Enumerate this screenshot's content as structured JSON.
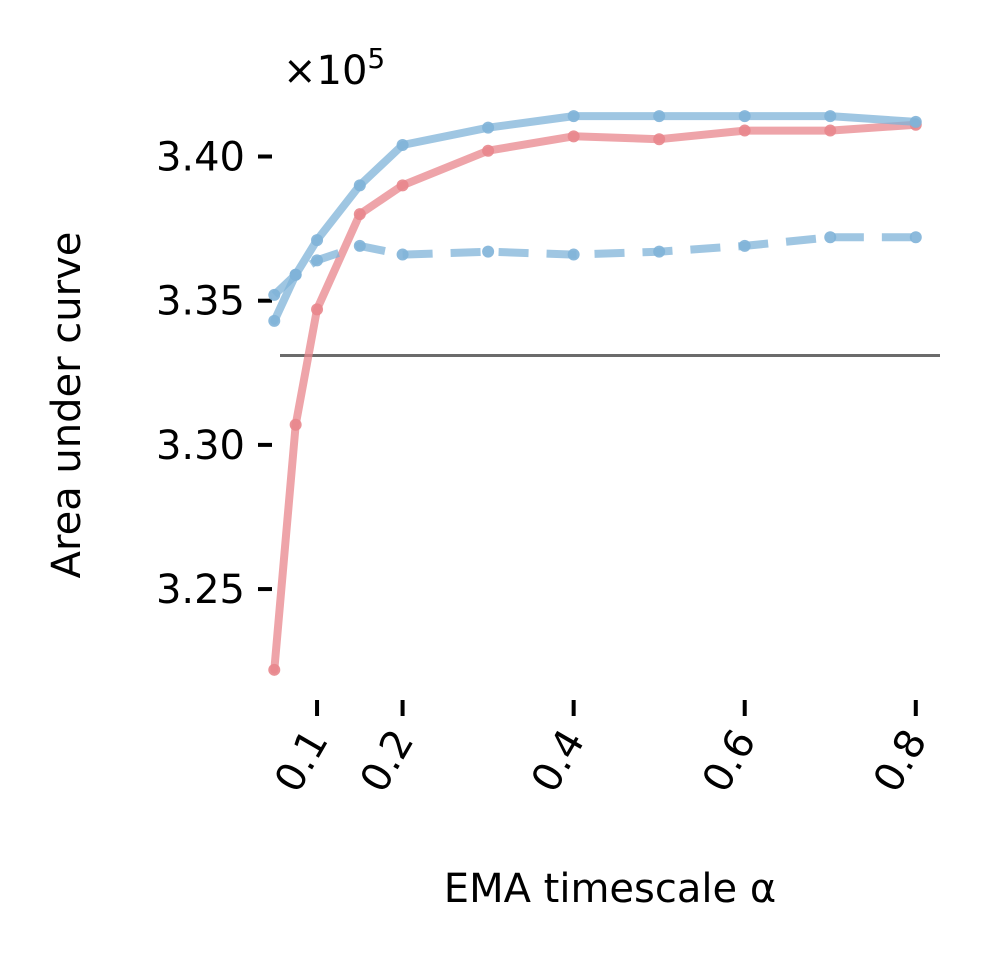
{
  "chart_data": {
    "type": "line",
    "xlabel": "EMA timescale α",
    "ylabel": "Area under curve",
    "y_offset_label": "×10",
    "y_offset_exponent": "5",
    "y_multiplier": 100000,
    "xlim": [
      0.045,
      0.84
    ],
    "ylim": [
      3.215,
      3.43
    ],
    "x_ticks": [
      0.1,
      0.2,
      0.4,
      0.6,
      0.8
    ],
    "x_tick_labels": [
      "0.1",
      "0.2",
      "0.4",
      "0.6",
      "0.8"
    ],
    "y_ticks": [
      3.25,
      3.3,
      3.35,
      3.4
    ],
    "y_tick_labels": [
      "3.25",
      "3.30",
      "3.35",
      "3.40"
    ],
    "grid": false,
    "reference_line": {
      "y": 3.331,
      "color": "#6b6b6b"
    },
    "series": [
      {
        "color": "#e8868c",
        "style": "solid",
        "x": [
          0.05,
          0.075,
          0.1,
          0.15,
          0.2,
          0.3,
          0.4,
          0.5,
          0.6,
          0.7,
          0.8
        ],
        "values": [
          3.222,
          3.307,
          3.347,
          3.38,
          3.39,
          3.402,
          3.407,
          3.406,
          3.409,
          3.409,
          3.411
        ]
      },
      {
        "color": "#7fb3d8",
        "style": "solid",
        "x": [
          0.05,
          0.075,
          0.1,
          0.15,
          0.2,
          0.3,
          0.4,
          0.5,
          0.6,
          0.7,
          0.8
        ],
        "values": [
          3.343,
          3.359,
          3.371,
          3.39,
          3.404,
          3.41,
          3.414,
          3.414,
          3.414,
          3.414,
          3.412
        ]
      },
      {
        "color": "#7fb3d8",
        "style": "dashed",
        "x": [
          0.05,
          0.075,
          0.1,
          0.15,
          0.2,
          0.3,
          0.4,
          0.5,
          0.6,
          0.7,
          0.8
        ],
        "values": [
          3.352,
          3.359,
          3.364,
          3.369,
          3.366,
          3.367,
          3.366,
          3.367,
          3.369,
          3.372,
          3.372
        ]
      }
    ]
  }
}
